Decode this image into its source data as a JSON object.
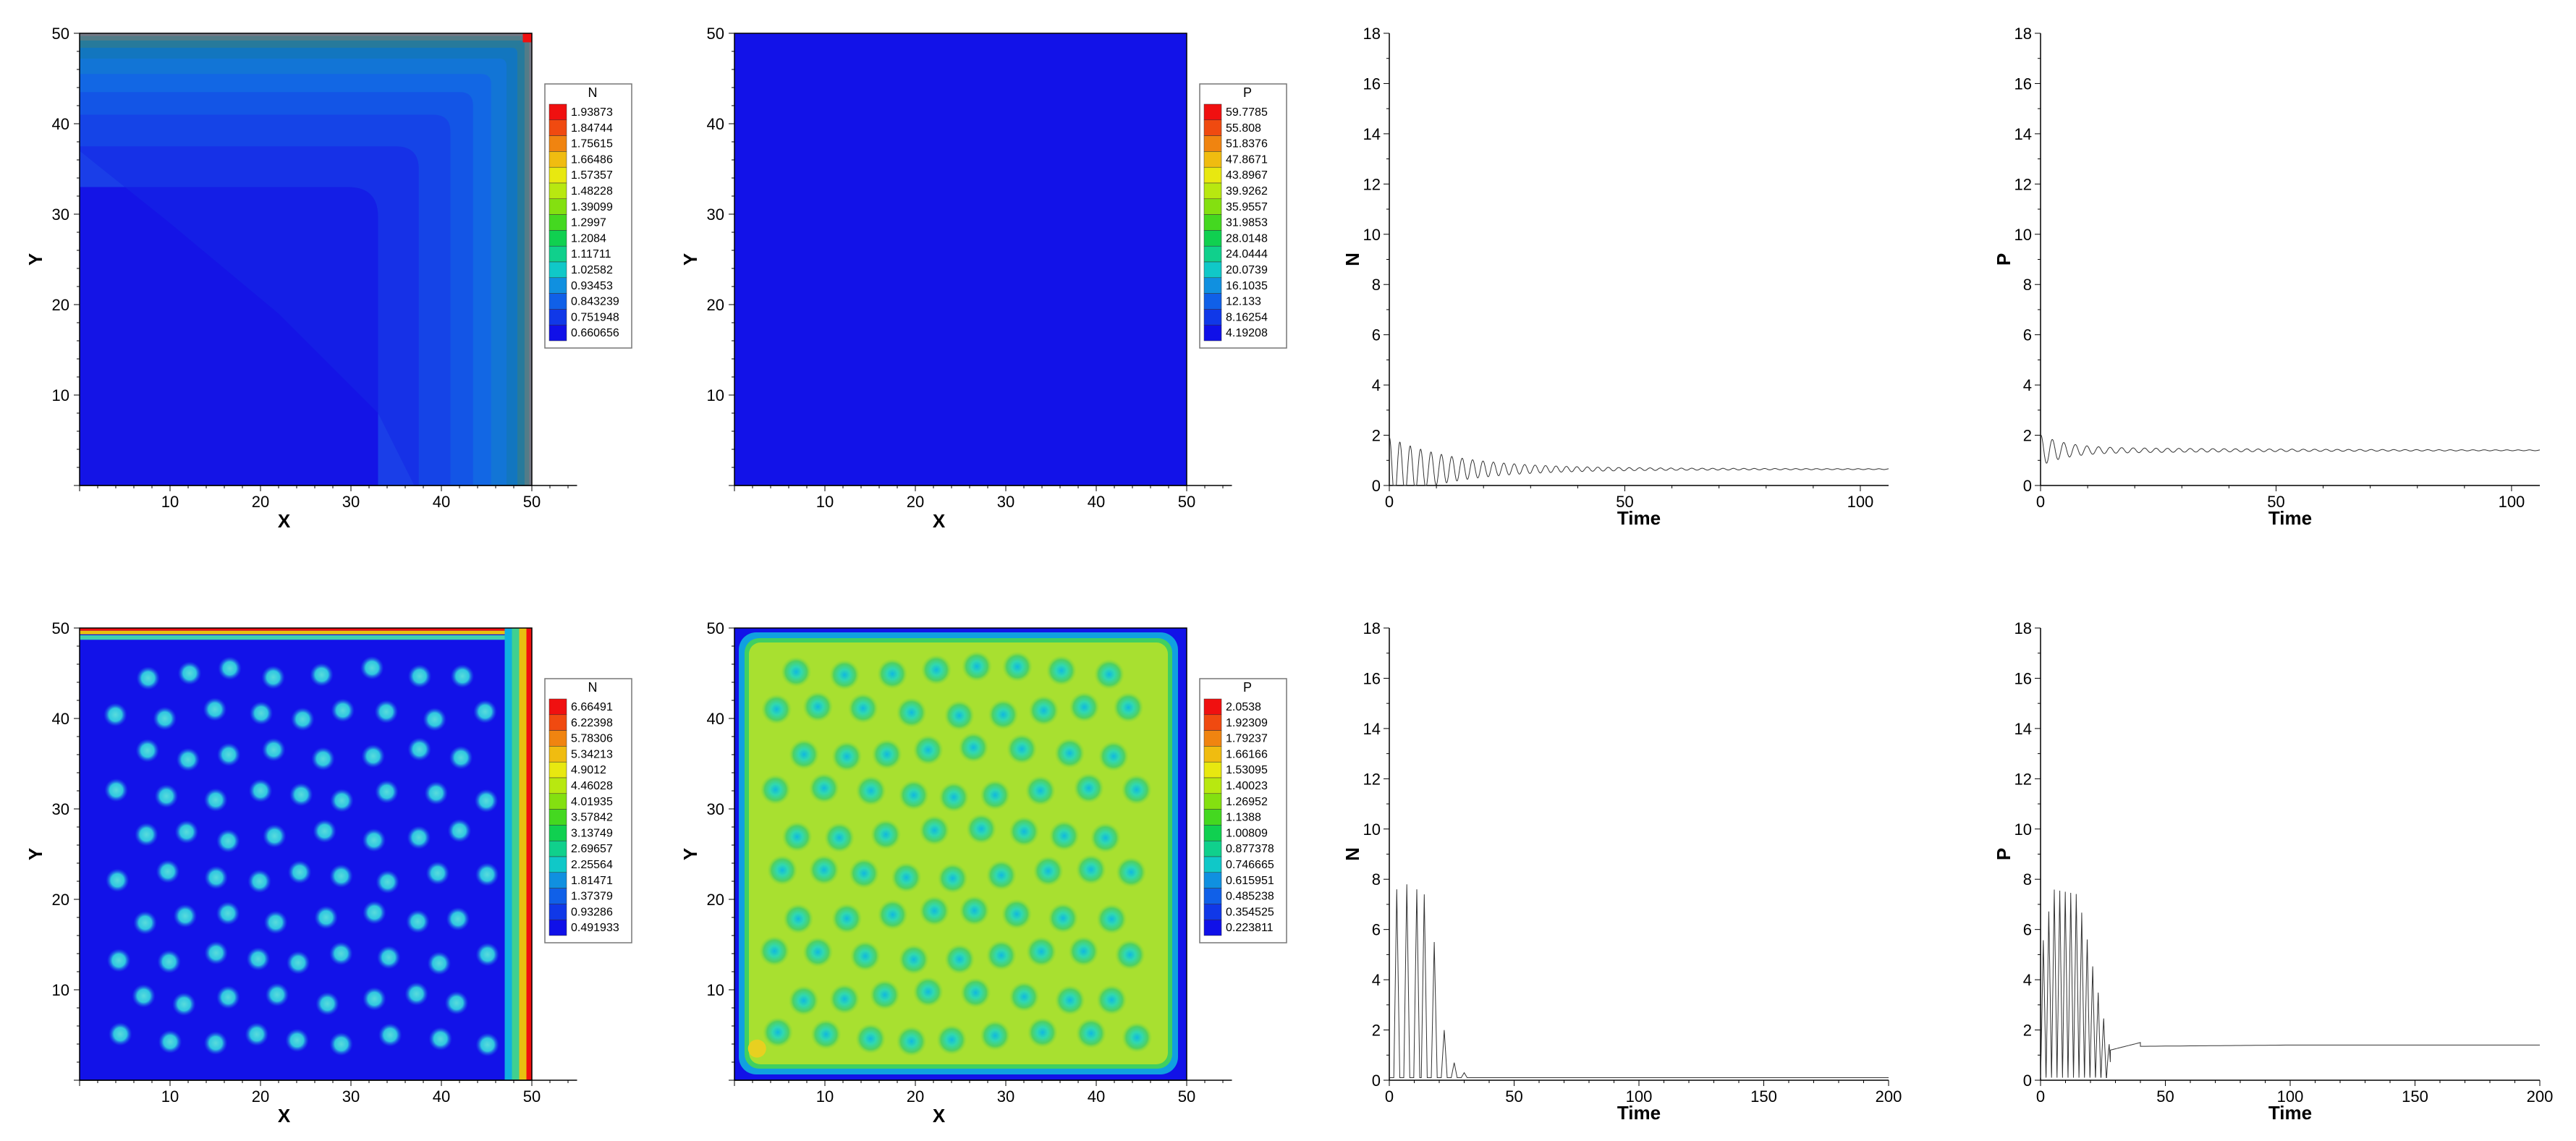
{
  "chart_data": [
    {
      "type": "heatmap",
      "panel": "top-left",
      "variable": "N",
      "xlabel": "X",
      "ylabel": "Y",
      "xlim": [
        0,
        50
      ],
      "ylim": [
        0,
        50
      ],
      "xticks": [
        "10",
        "20",
        "30",
        "40",
        "50"
      ],
      "yticks": [
        "10",
        "20",
        "30",
        "40",
        "50"
      ],
      "pattern": "corner",
      "legend": {
        "title": "N",
        "placement": "right",
        "levels": [
          "1.93873",
          "1.84744",
          "1.75615",
          "1.66486",
          "1.57357",
          "1.48228",
          "1.39099",
          "1.2997",
          "1.2084",
          "1.11711",
          "1.02582",
          "0.93453",
          "0.843239",
          "0.751948",
          "0.660656"
        ]
      }
    },
    {
      "type": "heatmap",
      "panel": "top-second",
      "variable": "P",
      "xlabel": "X",
      "ylabel": "Y",
      "xlim": [
        0,
        50
      ],
      "ylim": [
        0,
        50
      ],
      "xticks": [
        "10",
        "20",
        "30",
        "40",
        "50"
      ],
      "yticks": [
        "10",
        "20",
        "30",
        "40",
        "50"
      ],
      "pattern": "uniform",
      "legend": {
        "title": "P",
        "placement": "right",
        "levels": [
          "59.7785",
          "55.808",
          "51.8376",
          "47.8671",
          "43.8967",
          "39.9262",
          "35.9557",
          "31.9853",
          "28.0148",
          "24.0444",
          "20.0739",
          "16.1035",
          "12.133",
          "8.16254",
          "4.19208"
        ]
      }
    },
    {
      "type": "line",
      "panel": "top-third",
      "xlabel": "Time",
      "ylabel": "N",
      "xlim": [
        0,
        106
      ],
      "ylim": [
        0,
        18
      ],
      "xticks": [
        0,
        50,
        100
      ],
      "yticks": [
        0,
        2,
        4,
        6,
        8,
        10,
        12,
        14,
        16,
        18
      ],
      "series": [
        {
          "kind": "damped",
          "x0": 0,
          "y0": 1.9,
          "baseline": 0.65,
          "amp": 0.9,
          "period": 2.2,
          "decay": 0.07,
          "xend": 106
        }
      ]
    },
    {
      "type": "line",
      "panel": "top-fourth",
      "xlabel": "Time",
      "ylabel": "P",
      "xlim": [
        0,
        106
      ],
      "ylim": [
        0,
        18
      ],
      "xticks": [
        0,
        50,
        100
      ],
      "yticks": [
        0,
        2,
        4,
        6,
        8,
        10,
        12,
        14,
        16,
        18
      ],
      "series": [
        {
          "kind": "damped",
          "x0": 0,
          "y0": 2.0,
          "baseline": 1.4,
          "amp": 0.9,
          "period": 2.4,
          "decay": 0.15,
          "xend": 106
        }
      ]
    },
    {
      "type": "heatmap",
      "panel": "bottom-left",
      "variable": "N",
      "xlabel": "X",
      "ylabel": "Y",
      "xlim": [
        0,
        50
      ],
      "ylim": [
        0,
        50
      ],
      "xticks": [
        "10",
        "20",
        "30",
        "40",
        "50"
      ],
      "yticks": [
        "10",
        "20",
        "30",
        "40",
        "50"
      ],
      "pattern": "spots",
      "legend": {
        "title": "N",
        "placement": "right",
        "levels": [
          "6.66491",
          "6.22398",
          "5.78306",
          "5.34213",
          "4.9012",
          "4.46028",
          "4.01935",
          "3.57842",
          "3.13749",
          "2.69657",
          "2.25564",
          "1.81471",
          "1.37379",
          "0.93286",
          "0.491933"
        ]
      }
    },
    {
      "type": "heatmap",
      "panel": "bottom-second",
      "variable": "P",
      "xlabel": "X",
      "ylabel": "Y",
      "xlim": [
        0,
        50
      ],
      "ylim": [
        0,
        50
      ],
      "xticks": [
        "10",
        "20",
        "30",
        "40",
        "50"
      ],
      "yticks": [
        "10",
        "20",
        "30",
        "40",
        "50"
      ],
      "pattern": "holes",
      "legend": {
        "title": "P",
        "placement": "right",
        "levels": [
          "2.0538",
          "1.92309",
          "1.79237",
          "1.66166",
          "1.53095",
          "1.40023",
          "1.26952",
          "1.1388",
          "1.00809",
          "0.877378",
          "0.746665",
          "0.615951",
          "0.485238",
          "0.354525",
          "0.223811"
        ]
      }
    },
    {
      "type": "line",
      "panel": "bottom-third",
      "xlabel": "Time",
      "ylabel": "N",
      "xlim": [
        0,
        200
      ],
      "ylim": [
        0,
        18
      ],
      "xticks": [
        0,
        50,
        100,
        150,
        200
      ],
      "yticks": [
        0,
        2,
        4,
        6,
        8,
        10,
        12,
        14,
        16,
        18
      ],
      "series": [
        {
          "kind": "spikes",
          "peaks": [
            [
              3,
              7.6
            ],
            [
              7,
              7.8
            ],
            [
              11,
              7.6
            ],
            [
              14,
              7.4
            ],
            [
              18,
              5.5
            ],
            [
              22,
              2.0
            ],
            [
              26,
              0.7
            ],
            [
              30,
              0.3
            ]
          ],
          "baseline": 0.1,
          "xend": 200
        }
      ]
    },
    {
      "type": "line",
      "panel": "bottom-fourth",
      "xlabel": "Time",
      "ylabel": "P",
      "xlim": [
        0,
        200
      ],
      "ylim": [
        0,
        18
      ],
      "xticks": [
        0,
        50,
        100,
        150,
        200
      ],
      "yticks": [
        0,
        2,
        4,
        6,
        8,
        10,
        12,
        14,
        16,
        18
      ],
      "series": [
        {
          "kind": "osc",
          "ramp": [
            [
              0,
              5.0
            ],
            [
              5,
              7.6
            ],
            [
              15,
              7.4
            ],
            [
              22,
              4.0
            ],
            [
              28,
              1.2
            ],
            [
              35,
              1.2
            ]
          ],
          "period": 2.2,
          "stop": 28,
          "settle": 1.35,
          "xend": 200
        }
      ]
    }
  ]
}
